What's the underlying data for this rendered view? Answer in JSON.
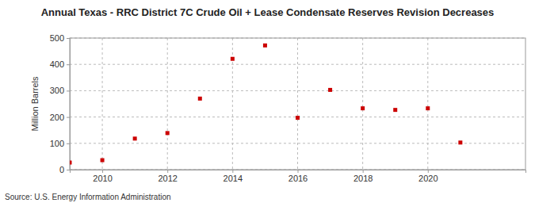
{
  "chart_data": {
    "type": "scatter",
    "title": "Annual Texas - RRC District 7C Crude Oil + Lease Condensate Reserves Revision Decreases",
    "y_label": "Million Barrels",
    "source": "Source: U.S. Energy Information Administration",
    "x": [
      2009,
      2010,
      2011,
      2012,
      2013,
      2014,
      2015,
      2016,
      2017,
      2018,
      2019,
      2020,
      2021
    ],
    "values": [
      27,
      36,
      118,
      139,
      270,
      421,
      472,
      197,
      303,
      233,
      227,
      233,
      103
    ],
    "color": "#cc0000",
    "marker": "square",
    "xlim": [
      2009,
      2023
    ],
    "xticks": [
      2010,
      2012,
      2014,
      2016,
      2018,
      2020
    ],
    "ylim": [
      0,
      500
    ],
    "yticks": [
      0,
      100,
      200,
      300,
      400,
      500
    ],
    "grid": true
  }
}
